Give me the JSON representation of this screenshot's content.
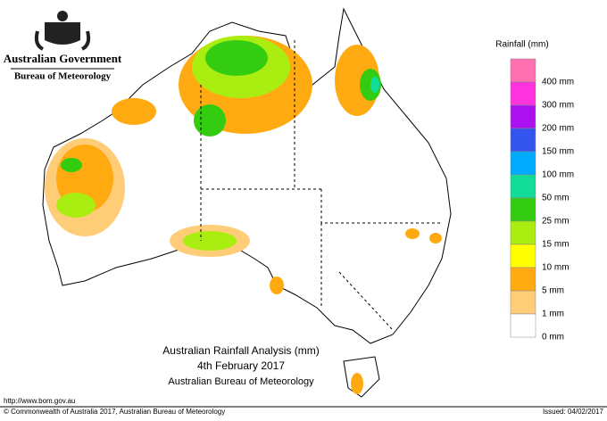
{
  "header": {
    "line1": "Australian Government",
    "line2": "Bureau of Meteorology"
  },
  "legend": {
    "title": "Rainfall (mm)",
    "items": [
      {
        "label": "400 mm",
        "color": "#ff70b0"
      },
      {
        "label": "300 mm",
        "color": "#ff33dd"
      },
      {
        "label": "200 mm",
        "color": "#aa11ee"
      },
      {
        "label": "150 mm",
        "color": "#3355ee"
      },
      {
        "label": "100 mm",
        "color": "#00aaff"
      },
      {
        "label": "50 mm",
        "color": "#11dd99"
      },
      {
        "label": "25 mm",
        "color": "#33cc11"
      },
      {
        "label": "15 mm",
        "color": "#aaee11"
      },
      {
        "label": "10 mm",
        "color": "#ffff00"
      },
      {
        "label": "5 mm",
        "color": "#ffaa11"
      },
      {
        "label": "1 mm",
        "color": "#ffcc77"
      },
      {
        "label": "0 mm",
        "color": "#ffffff"
      }
    ]
  },
  "map_title": {
    "line1": "Australian Rainfall Analysis (mm)",
    "line2": "4th February 2017",
    "line3": "Australian Bureau of Meteorology"
  },
  "footer": {
    "url": "http://www.bom.gov.au",
    "copyright": "© Commonwealth of Australia 2017, Australian Bureau of Meteorology",
    "issued": "Issued: 04/02/2017"
  }
}
